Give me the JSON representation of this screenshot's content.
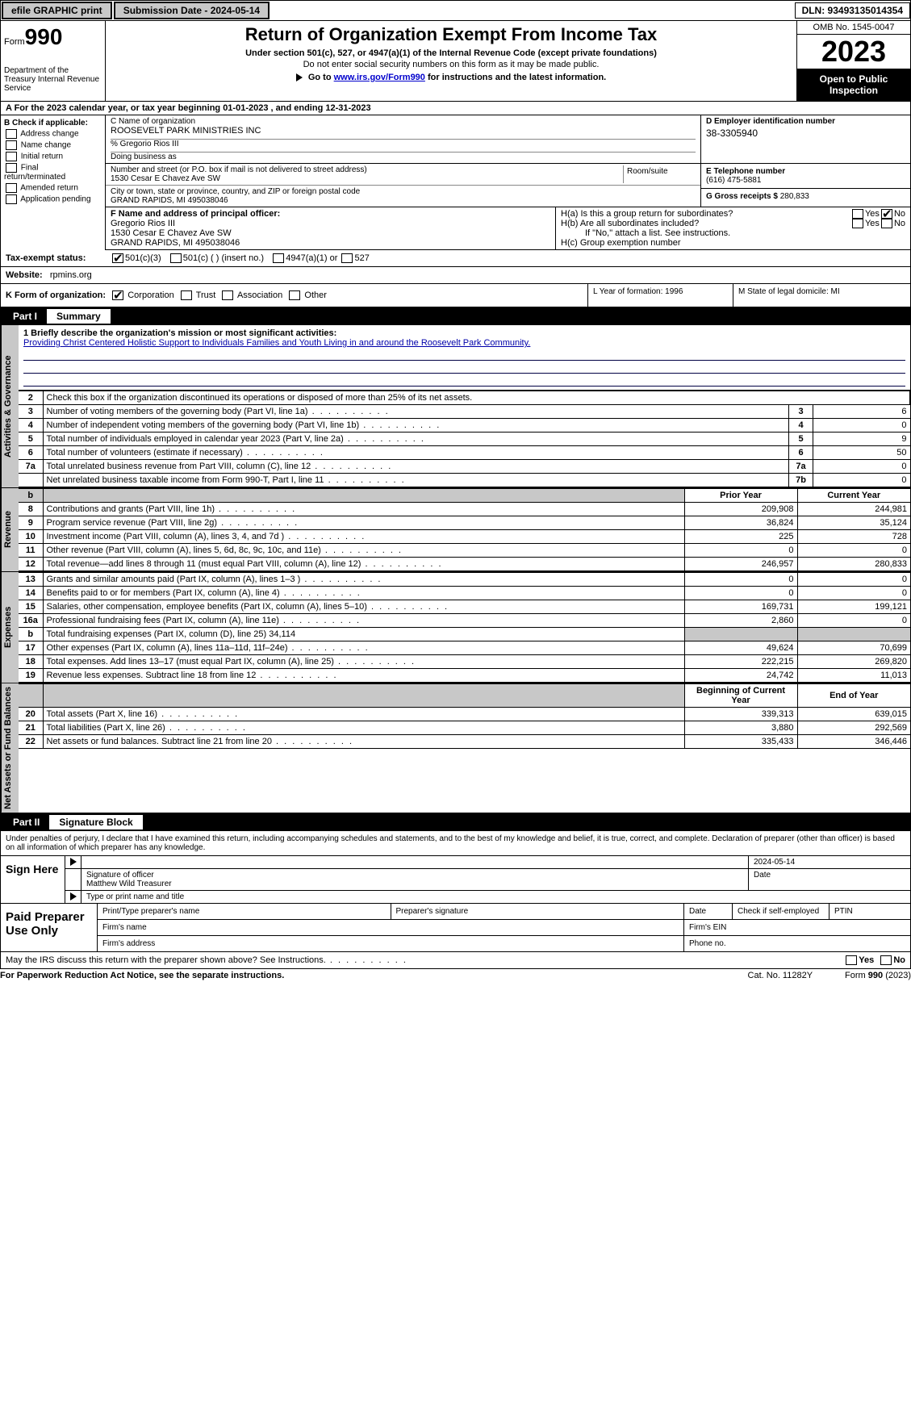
{
  "topbar": {
    "efile": "efile GRAPHIC print",
    "submission": "Submission Date - 2024-05-14",
    "dln": "DLN: 93493135014354"
  },
  "header": {
    "form_word": "Form",
    "form_num": "990",
    "dept": "Department of the Treasury Internal Revenue Service",
    "title": "Return of Organization Exempt From Income Tax",
    "sub1": "Under section 501(c), 527, or 4947(a)(1) of the Internal Revenue Code (except private foundations)",
    "sub2": "Do not enter social security numbers on this form as it may be made public.",
    "sub3_pre": "Go to ",
    "sub3_link": "www.irs.gov/Form990",
    "sub3_post": " for instructions and the latest information.",
    "omb": "OMB No. 1545-0047",
    "year": "2023",
    "open": "Open to Public Inspection"
  },
  "rowA": "A For the 2023 calendar year, or tax year beginning 01-01-2023   , and ending 12-31-2023",
  "boxB": {
    "label": "B Check if applicable:",
    "items": [
      "Address change",
      "Name change",
      "Initial return",
      "Final return/terminated",
      "Amended return",
      "Application pending"
    ]
  },
  "boxC": {
    "label": "C Name of organization",
    "org": "ROOSEVELT PARK MINISTRIES INC",
    "care": "% Gregorio Rios III",
    "dba": "Doing business as",
    "street_label": "Number and street (or P.O. box if mail is not delivered to street address)",
    "street": "1530 Cesar E Chavez Ave SW",
    "room": "Room/suite",
    "city_label": "City or town, state or province, country, and ZIP or foreign postal code",
    "city": "GRAND RAPIDS, MI  495038046"
  },
  "boxD": {
    "label": "D Employer identification number",
    "val": "38-3305940"
  },
  "boxE": {
    "label": "E Telephone number",
    "val": "(616) 475-5881"
  },
  "boxG": {
    "label": "G Gross receipts $",
    "val": "280,833"
  },
  "boxF": {
    "label": "F  Name and address of principal officer:",
    "name": "Gregorio Rios III",
    "addr1": "1530 Cesar E Chavez Ave SW",
    "addr2": "GRAND RAPIDS, MI  495038046"
  },
  "boxH": {
    "a": "H(a)  Is this a group return for subordinates?",
    "b": "H(b)  Are all subordinates included?",
    "b_note": "If \"No,\" attach a list. See instructions.",
    "c": "H(c)  Group exemption number"
  },
  "taxrow": {
    "label": "Tax-exempt status:",
    "o1": "501(c)(3)",
    "o2": "501(c) (  ) (insert no.)",
    "o3": "4947(a)(1) or",
    "o4": "527"
  },
  "web": {
    "label": "Website:",
    "val": "rpmins.org"
  },
  "krow": {
    "k": "K Form of organization:",
    "opts": [
      "Corporation",
      "Trust",
      "Association",
      "Other"
    ],
    "l": "L Year of formation: 1996",
    "m": "M State of legal domicile: MI"
  },
  "part1": {
    "num": "Part I",
    "title": "Summary"
  },
  "mission": {
    "q": "1   Briefly describe the organization's mission or most significant activities:",
    "a": "Providing Christ Centered Holistic Support to Individuals Families and Youth Living in and around the Roosevelt Park Community."
  },
  "line2": "Check this box      if the organization discontinued its operations or disposed of more than 25% of its net assets.",
  "gov_rows": [
    {
      "n": "3",
      "t": "Number of voting members of the governing body (Part VI, line 1a)",
      "b": "3",
      "v": "6"
    },
    {
      "n": "4",
      "t": "Number of independent voting members of the governing body (Part VI, line 1b)",
      "b": "4",
      "v": "0"
    },
    {
      "n": "5",
      "t": "Total number of individuals employed in calendar year 2023 (Part V, line 2a)",
      "b": "5",
      "v": "9"
    },
    {
      "n": "6",
      "t": "Total number of volunteers (estimate if necessary)",
      "b": "6",
      "v": "50"
    },
    {
      "n": "7a",
      "t": "Total unrelated business revenue from Part VIII, column (C), line 12",
      "b": "7a",
      "v": "0"
    },
    {
      "n": "",
      "t": "Net unrelated business taxable income from Form 990-T, Part I, line 11",
      "b": "7b",
      "v": "0"
    }
  ],
  "rev_hdr": {
    "b": "b",
    "py": "Prior Year",
    "cy": "Current Year"
  },
  "rev_rows": [
    {
      "n": "8",
      "t": "Contributions and grants (Part VIII, line 1h)",
      "p": "209,908",
      "c": "244,981"
    },
    {
      "n": "9",
      "t": "Program service revenue (Part VIII, line 2g)",
      "p": "36,824",
      "c": "35,124"
    },
    {
      "n": "10",
      "t": "Investment income (Part VIII, column (A), lines 3, 4, and 7d )",
      "p": "225",
      "c": "728"
    },
    {
      "n": "11",
      "t": "Other revenue (Part VIII, column (A), lines 5, 6d, 8c, 9c, 10c, and 11e)",
      "p": "0",
      "c": "0"
    },
    {
      "n": "12",
      "t": "Total revenue—add lines 8 through 11 (must equal Part VIII, column (A), line 12)",
      "p": "246,957",
      "c": "280,833"
    }
  ],
  "exp_rows": [
    {
      "n": "13",
      "t": "Grants and similar amounts paid (Part IX, column (A), lines 1–3 )",
      "p": "0",
      "c": "0"
    },
    {
      "n": "14",
      "t": "Benefits paid to or for members (Part IX, column (A), line 4)",
      "p": "0",
      "c": "0"
    },
    {
      "n": "15",
      "t": "Salaries, other compensation, employee benefits (Part IX, column (A), lines 5–10)",
      "p": "169,731",
      "c": "199,121"
    },
    {
      "n": "16a",
      "t": "Professional fundraising fees (Part IX, column (A), line 11e)",
      "p": "2,860",
      "c": "0"
    },
    {
      "n": "b",
      "t": "Total fundraising expenses (Part IX, column (D), line 25) 34,114",
      "p": "",
      "c": "",
      "shade": true
    },
    {
      "n": "17",
      "t": "Other expenses (Part IX, column (A), lines 11a–11d, 11f–24e)",
      "p": "49,624",
      "c": "70,699"
    },
    {
      "n": "18",
      "t": "Total expenses. Add lines 13–17 (must equal Part IX, column (A), line 25)",
      "p": "222,215",
      "c": "269,820"
    },
    {
      "n": "19",
      "t": "Revenue less expenses. Subtract line 18 from line 12",
      "p": "24,742",
      "c": "11,013"
    }
  ],
  "na_hdr": {
    "py": "Beginning of Current Year",
    "cy": "End of Year"
  },
  "na_rows": [
    {
      "n": "20",
      "t": "Total assets (Part X, line 16)",
      "p": "339,313",
      "c": "639,015"
    },
    {
      "n": "21",
      "t": "Total liabilities (Part X, line 26)",
      "p": "3,880",
      "c": "292,569"
    },
    {
      "n": "22",
      "t": "Net assets or fund balances. Subtract line 21 from line 20",
      "p": "335,433",
      "c": "346,446"
    }
  ],
  "part2": {
    "num": "Part II",
    "title": "Signature Block"
  },
  "sig_intro": "Under penalties of perjury, I declare that I have examined this return, including accompanying schedules and statements, and to the best of my knowledge and belief, it is true, correct, and complete. Declaration of preparer (other than officer) is based on all information of which preparer has any knowledge.",
  "sign_here": "Sign Here",
  "sig": {
    "date": "2024-05-14",
    "sig_label": "Signature of officer",
    "name": "Matthew Wild Treasurer",
    "name_label": "Type or print name and title",
    "date_label": "Date"
  },
  "paid": "Paid Preparer Use Only",
  "paid_labels": {
    "name": "Print/Type preparer's name",
    "sig": "Preparer's signature",
    "date": "Date",
    "check": "Check       if self-employed",
    "ptin": "PTIN",
    "fname": "Firm's name",
    "fein": "Firm's EIN",
    "faddr": "Firm's address",
    "phone": "Phone no."
  },
  "irs_q": "May the IRS discuss this return with the preparer shown above? See Instructions.",
  "foot": {
    "l": "For Paperwork Reduction Act Notice, see the separate instructions.",
    "c": "Cat. No. 11282Y",
    "r": "Form 990 (2023)"
  },
  "vtabs": {
    "gov": "Activities & Governance",
    "rev": "Revenue",
    "exp": "Expenses",
    "na": "Net Assets or Fund Balances"
  },
  "yes": "Yes",
  "no": "No"
}
